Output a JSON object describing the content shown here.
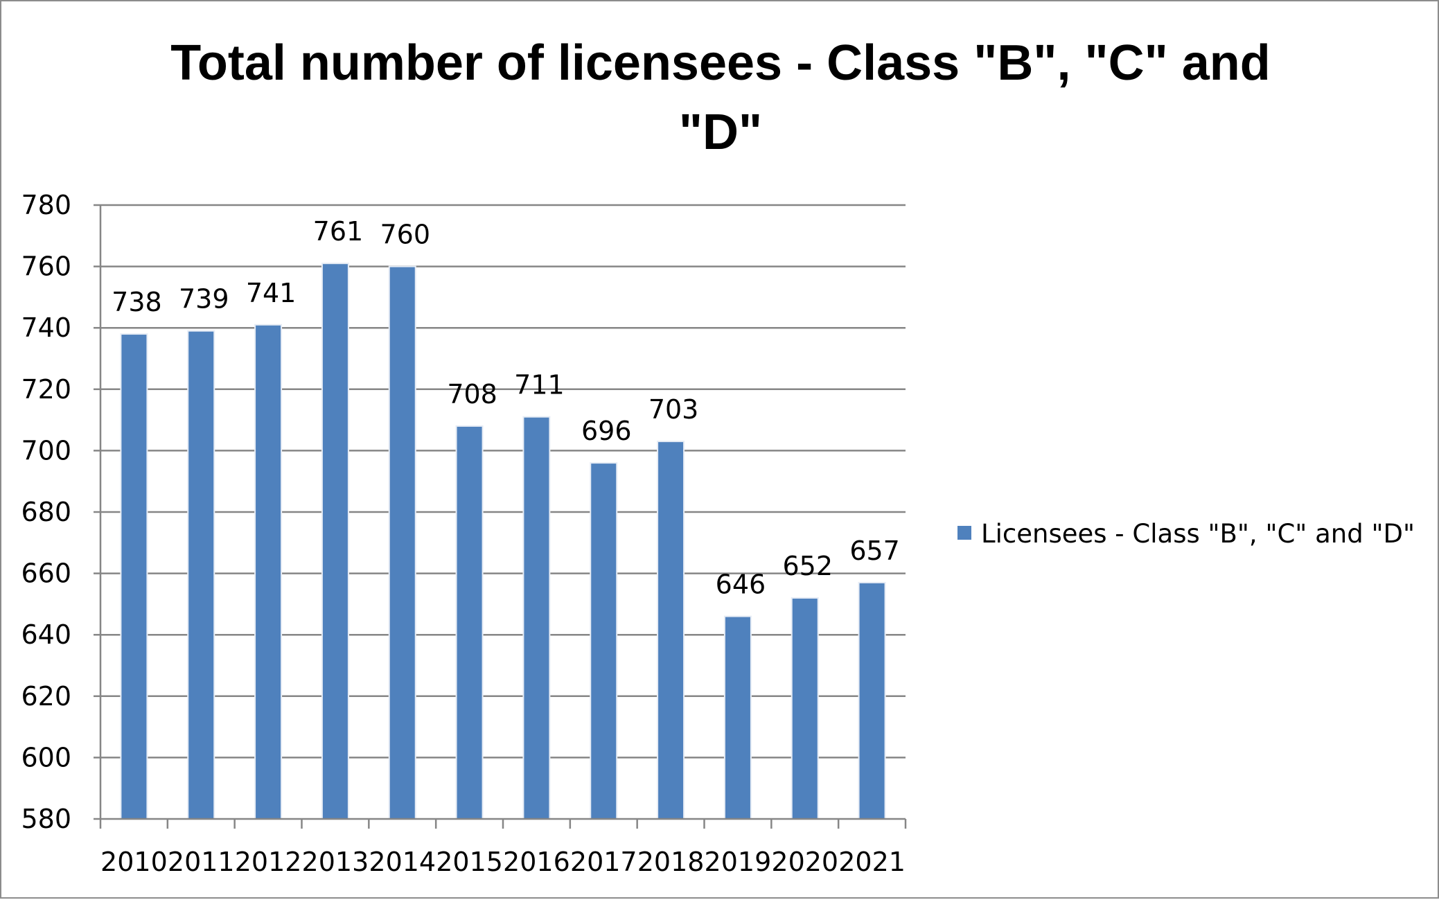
{
  "chart_data": {
    "type": "bar",
    "title": "Total number of licensees - Class \"B\", \"C\" and \"D\"",
    "title_lines": [
      "Total number of licensees - Class \"B\", \"C\" and",
      "\"D\""
    ],
    "categories": [
      "2010",
      "2011",
      "2012",
      "2013",
      "2014",
      "2015",
      "2016",
      "2017",
      "2018",
      "2019",
      "2020",
      "2021"
    ],
    "series": [
      {
        "name": "Licensees - Class \"B\", \"C\" and \"D\"",
        "values": [
          738,
          739,
          741,
          761,
          760,
          708,
          711,
          696,
          703,
          646,
          652,
          657
        ],
        "color": "#4f81bd"
      }
    ],
    "ylim": [
      580,
      780
    ],
    "yticks": [
      580,
      600,
      620,
      640,
      660,
      680,
      700,
      720,
      740,
      760,
      780
    ],
    "xlabel": "",
    "ylabel": "",
    "grid": true,
    "data_labels": true,
    "legend_position": "right"
  }
}
